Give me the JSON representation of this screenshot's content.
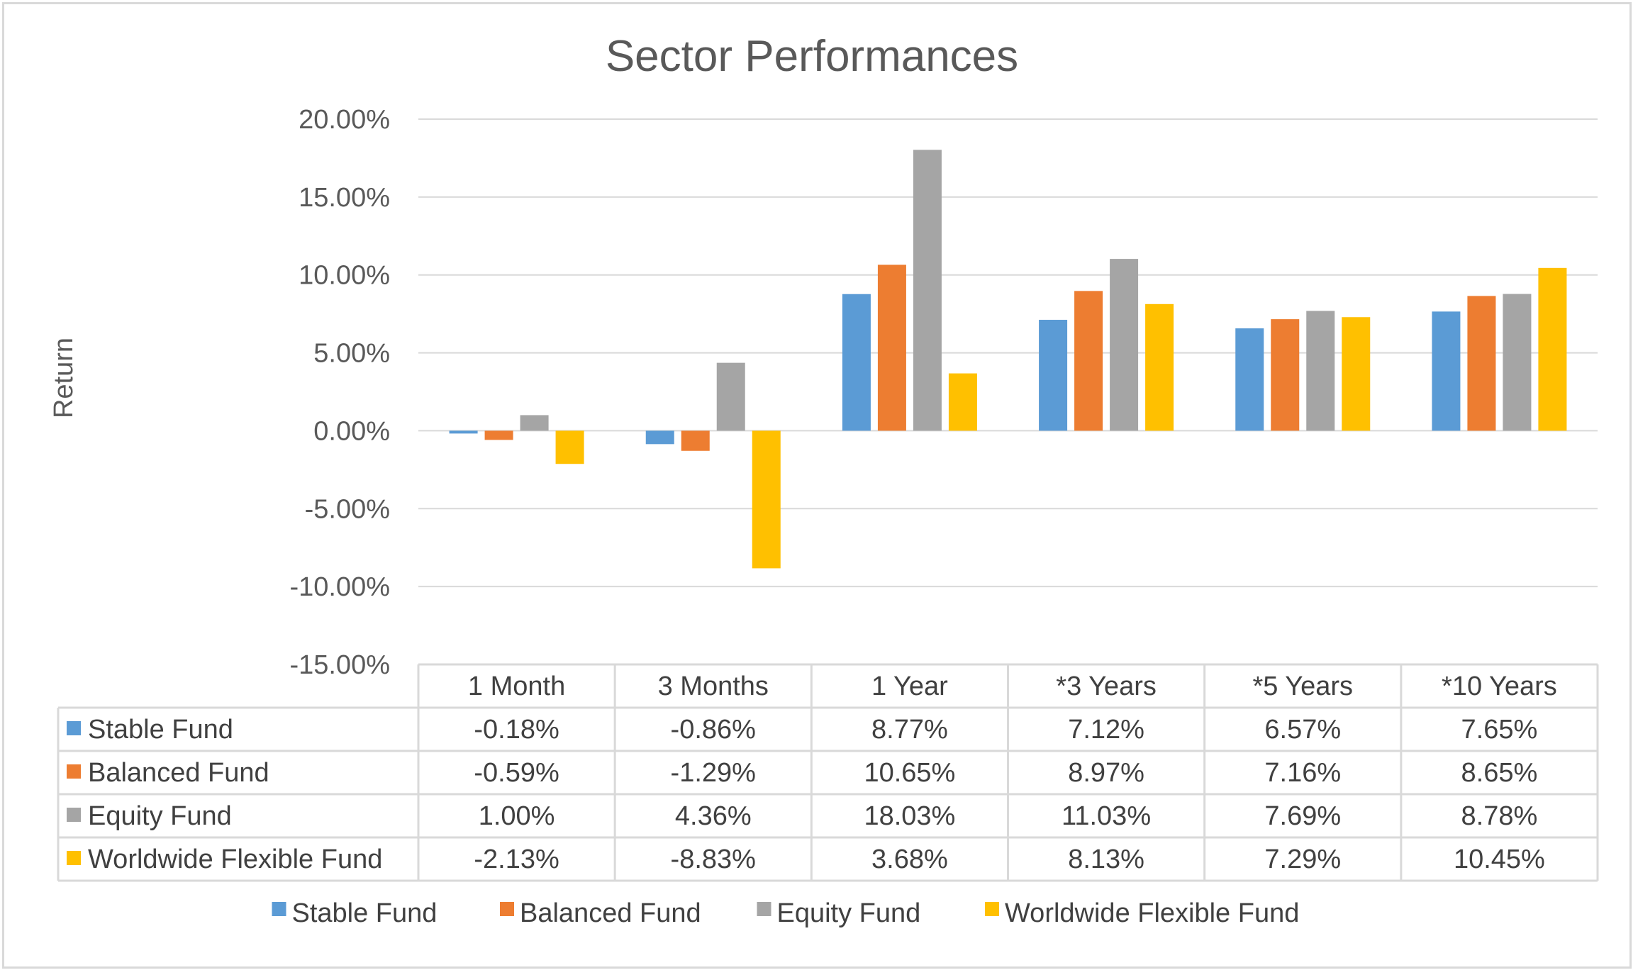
{
  "chart_data": {
    "type": "bar",
    "title": "Sector Performances",
    "xlabel": "",
    "ylabel": "Return",
    "ylim": [
      -0.15,
      0.2
    ],
    "yticks": [
      "20.00%",
      "15.00%",
      "10.00%",
      "5.00%",
      "0.00%",
      "-5.00%",
      "-10.00%",
      "-15.00%"
    ],
    "ytick_values": [
      0.2,
      0.15,
      0.1,
      0.05,
      0.0,
      -0.05,
      -0.1,
      -0.15
    ],
    "grid": true,
    "legend_position": "bottom",
    "data_table": true,
    "categories": [
      "1 Month",
      "3 Months",
      "1 Year",
      "*3 Years",
      "*5 Years",
      "*10 Years"
    ],
    "series": [
      {
        "name": "Stable Fund",
        "color": "#5b9bd5",
        "values": [
          -0.0018,
          -0.0086,
          0.0877,
          0.0712,
          0.0657,
          0.0765
        ],
        "labels": [
          "-0.18%",
          "-0.86%",
          "8.77%",
          "7.12%",
          "6.57%",
          "7.65%"
        ]
      },
      {
        "name": "Balanced Fund",
        "color": "#ed7d31",
        "values": [
          -0.0059,
          -0.0129,
          0.1065,
          0.0897,
          0.0716,
          0.0865
        ],
        "labels": [
          "-0.59%",
          "-1.29%",
          "10.65%",
          "8.97%",
          "7.16%",
          "8.65%"
        ]
      },
      {
        "name": "Equity Fund",
        "color": "#a5a5a5",
        "values": [
          0.01,
          0.0436,
          0.1803,
          0.1103,
          0.0769,
          0.0878
        ],
        "labels": [
          "1.00%",
          "4.36%",
          "18.03%",
          "11.03%",
          "7.69%",
          "8.78%"
        ]
      },
      {
        "name": "Worldwide Flexible Fund",
        "color": "#ffc000",
        "values": [
          -0.0213,
          -0.0883,
          0.0368,
          0.0813,
          0.0729,
          0.1045
        ],
        "labels": [
          "-2.13%",
          "-8.83%",
          "3.68%",
          "8.13%",
          "7.29%",
          "10.45%"
        ]
      }
    ]
  }
}
